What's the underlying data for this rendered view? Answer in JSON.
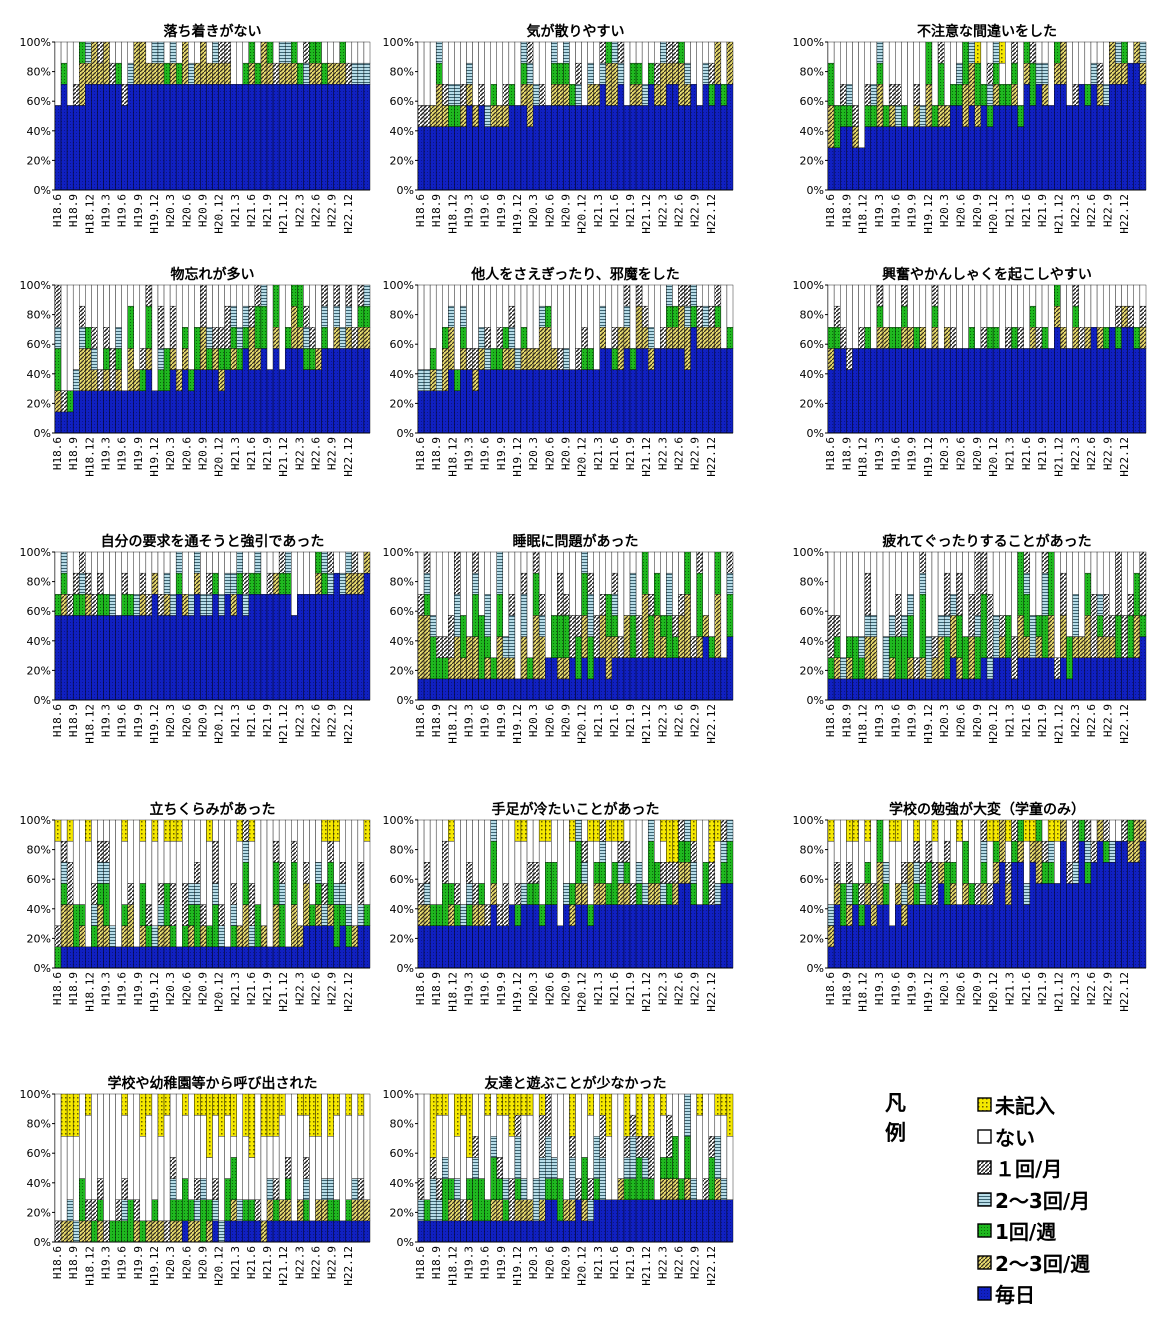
{
  "legend": {
    "title": "凡例",
    "items": [
      {
        "label": "未記入",
        "color": "#f2e600",
        "pattern": "dots"
      },
      {
        "label": "ない",
        "color": "#ffffff",
        "pattern": "vlines"
      },
      {
        "label": "１回/月",
        "color": "#ffffff",
        "pattern": "diag-dark"
      },
      {
        "label": "2～3回/月",
        "color": "#b5d6e6",
        "pattern": "hlines"
      },
      {
        "label": "1回/週",
        "color": "#22b522",
        "pattern": "green-dots"
      },
      {
        "label": "2～3回/週",
        "color": "#e6d86e",
        "pattern": "diag-yellow"
      },
      {
        "label": "毎日",
        "color": "#1020c0",
        "pattern": "blue"
      }
    ]
  },
  "chart_data": [
    {
      "type": "bar",
      "title": "落ち着きがない",
      "seed": 11,
      "profile": {
        "mai": [
          57,
          80
        ],
        "w1": [
          0,
          14
        ],
        "w23": [
          0,
          28
        ],
        "m23": [
          0,
          14
        ],
        "m1": [
          0,
          14
        ],
        "na": [
          0,
          6
        ]
      }
    },
    {
      "type": "bar",
      "title": "気が散りやすい",
      "seed": 23,
      "profile": {
        "mai": [
          30,
          80
        ],
        "w1": [
          0,
          14
        ],
        "w23": [
          0,
          28
        ],
        "m23": [
          0,
          14
        ],
        "m1": [
          0,
          14
        ],
        "na": [
          0,
          6
        ]
      }
    },
    {
      "type": "bar",
      "title": "不注意な間違いをした",
      "seed": 37,
      "profile": {
        "mai": [
          14,
          85
        ],
        "w1": [
          0,
          28
        ],
        "w23": [
          0,
          28
        ],
        "m23": [
          0,
          14
        ],
        "m1": [
          0,
          14
        ],
        "na": [
          0,
          8
        ]
      }
    },
    {
      "type": "bar",
      "title": "物忘れが多い",
      "seed": 41,
      "profile": {
        "mai": [
          0,
          80
        ],
        "w1": [
          0,
          28
        ],
        "w23": [
          0,
          28
        ],
        "m23": [
          0,
          14
        ],
        "m1": [
          0,
          28
        ],
        "na": [
          0,
          4
        ]
      }
    },
    {
      "type": "bar",
      "title": "他人をさえぎったり、邪魔をした",
      "seed": 53,
      "profile": {
        "mai": [
          14,
          72
        ],
        "w1": [
          0,
          14
        ],
        "w23": [
          0,
          28
        ],
        "m23": [
          0,
          14
        ],
        "m1": [
          0,
          14
        ],
        "na": [
          0,
          6
        ]
      }
    },
    {
      "type": "bar",
      "title": "興奮やかんしゃくを起こしやすい",
      "seed": 67,
      "profile": {
        "mai": [
          42,
          72
        ],
        "w1": [
          0,
          14
        ],
        "w23": [
          0,
          14
        ],
        "m23": [
          0,
          6
        ],
        "m1": [
          0,
          14
        ],
        "na": [
          0,
          6
        ]
      }
    },
    {
      "type": "bar",
      "title": "自分の要求を通そうと強引であった",
      "seed": 71,
      "profile": {
        "mai": [
          42,
          85
        ],
        "w1": [
          0,
          14
        ],
        "w23": [
          0,
          14
        ],
        "m23": [
          0,
          14
        ],
        "m1": [
          0,
          14
        ],
        "na": [
          0,
          6
        ]
      }
    },
    {
      "type": "bar",
      "title": "睡眠に問題があった",
      "seed": 83,
      "profile": {
        "mai": [
          0,
          42
        ],
        "w1": [
          0,
          42
        ],
        "w23": [
          0,
          42
        ],
        "m23": [
          0,
          28
        ],
        "m1": [
          0,
          28
        ],
        "na": [
          0,
          6
        ]
      }
    },
    {
      "type": "bar",
      "title": "疲れてぐったりすることがあった",
      "seed": 97,
      "profile": {
        "mai": [
          0,
          40
        ],
        "w1": [
          0,
          42
        ],
        "w23": [
          0,
          28
        ],
        "m23": [
          0,
          28
        ],
        "m1": [
          0,
          42
        ],
        "na": [
          0,
          6
        ]
      }
    },
    {
      "type": "bar",
      "title": "立ちくらみがあった",
      "seed": 101,
      "profile": {
        "mai": [
          0,
          28
        ],
        "w1": [
          0,
          28
        ],
        "w23": [
          0,
          28
        ],
        "m23": [
          0,
          14
        ],
        "m1": [
          0,
          28
        ],
        "na": [
          0,
          20
        ]
      }
    },
    {
      "type": "bar",
      "title": "手足が冷たいことがあった",
      "seed": 113,
      "profile": {
        "mai": [
          14,
          60
        ],
        "w1": [
          0,
          28
        ],
        "w23": [
          0,
          14
        ],
        "m23": [
          0,
          14
        ],
        "m1": [
          0,
          28
        ],
        "na": [
          0,
          28
        ]
      }
    },
    {
      "type": "bar",
      "title": "学校の勉強が大変（学童のみ）",
      "seed": 127,
      "profile": {
        "mai": [
          0,
          100
        ],
        "w1": [
          0,
          28
        ],
        "w23": [
          0,
          28
        ],
        "m23": [
          0,
          14
        ],
        "m1": [
          0,
          28
        ],
        "na": [
          0,
          14
        ]
      }
    },
    {
      "type": "bar",
      "title": "学校や幼稚園等から呼び出された",
      "seed": 131,
      "profile": {
        "mai": [
          0,
          14
        ],
        "w1": [
          0,
          28
        ],
        "w23": [
          0,
          14
        ],
        "m23": [
          0,
          14
        ],
        "m1": [
          0,
          14
        ],
        "na": [
          0,
          40
        ]
      }
    },
    {
      "type": "bar",
      "title": "友達と遊ぶことが少なかった",
      "seed": 139,
      "profile": {
        "mai": [
          14,
          28
        ],
        "w1": [
          0,
          28
        ],
        "w23": [
          0,
          14
        ],
        "m23": [
          0,
          28
        ],
        "m1": [
          0,
          28
        ],
        "na": [
          0,
          40
        ]
      }
    }
  ],
  "x_tick_labels": [
    "H18.6",
    "H18.9",
    "H18.12",
    "H19.3",
    "H19.6",
    "H19.9",
    "H19.12",
    "H20.3",
    "H20.6",
    "H20.9",
    "H20.12",
    "H21.3",
    "H21.6",
    "H21.9",
    "H21.12",
    "H22.3",
    "H22.6",
    "H22.9",
    "H22.12"
  ],
  "y_tick_labels": [
    "0%",
    "20%",
    "40%",
    "60%",
    "80%",
    "100%"
  ],
  "bars_per_chart": 52
}
